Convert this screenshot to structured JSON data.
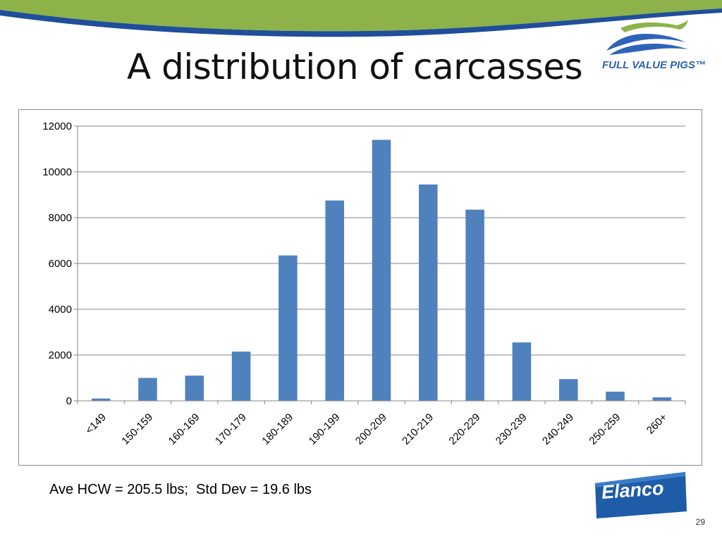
{
  "slide": {
    "title": "A distribution of carcasses",
    "caption": "Ave HCW = 205.5 lbs;  Std Dev = 19.6 lbs",
    "page_number": "29",
    "banner_color": "#8db24a",
    "accent_blue": "#1f4e9a"
  },
  "logos": {
    "brand": {
      "text": "FULL VALUE PIGS™",
      "icon": "pig-silhouette-icon",
      "colors": [
        "#8db24a",
        "#2e63b6"
      ]
    },
    "partner": {
      "text": "Elanco",
      "color": "#1f5ca8"
    }
  },
  "chart_data": {
    "type": "bar",
    "title": "",
    "xlabel": "",
    "ylabel": "",
    "categories": [
      "<149",
      "150-159",
      "160-169",
      "170-179",
      "180-189",
      "190-199",
      "200-209",
      "210-219",
      "220-229",
      "230-239",
      "240-249",
      "250-259",
      "260+"
    ],
    "values": [
      100,
      1000,
      1100,
      2150,
      6350,
      8750,
      11400,
      9450,
      8350,
      2550,
      950,
      400,
      150
    ],
    "ylim": [
      0,
      12000
    ],
    "yticks": [
      0,
      2000,
      4000,
      6000,
      8000,
      10000,
      12000
    ],
    "bar_color": "#4f81bd",
    "grid": true,
    "legend": "none"
  }
}
